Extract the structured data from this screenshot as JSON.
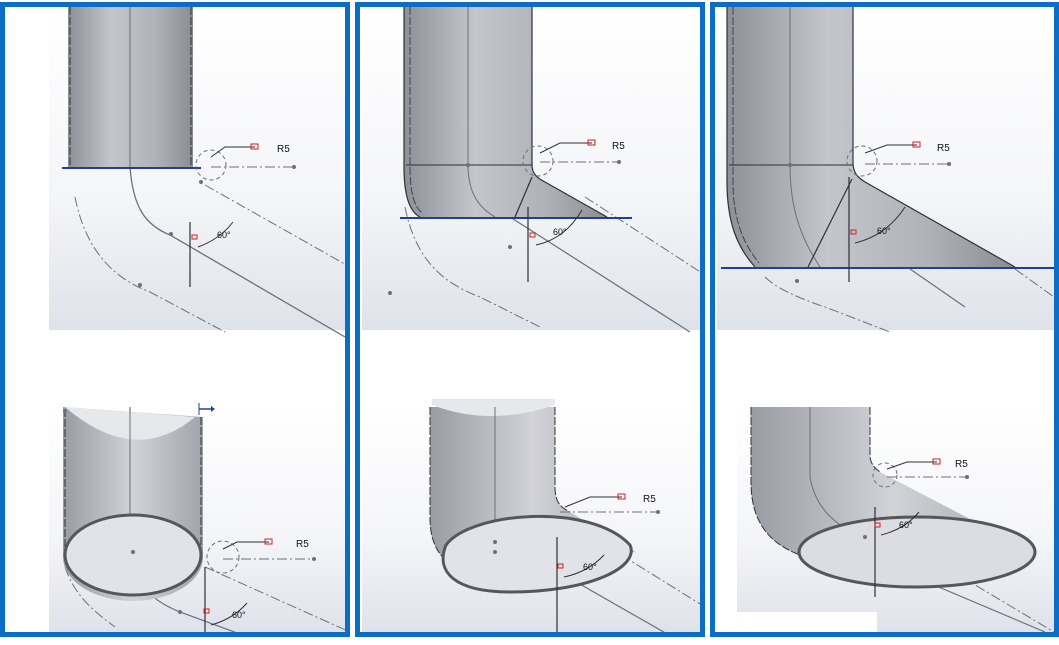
{
  "colors": {
    "frame": "#0b6ec4",
    "section_line": "#1f3fa0",
    "pipe_fill": "#a9abb2",
    "edge": "#2f3136",
    "construction": "#6e7076",
    "relation_marker": "#d42020"
  },
  "icons": [
    "radius-callout-icon",
    "relation-marker-icon",
    "triad-arrow-icon"
  ],
  "panels": [
    {
      "top": {
        "radius_label": "R5",
        "angle_label": "60°"
      },
      "bottom": {
        "radius_label": "R5",
        "angle_label": "60°"
      }
    },
    {
      "top": {
        "radius_label": "R5",
        "angle_label": "60°"
      },
      "bottom": {
        "radius_label": "R5",
        "angle_label": "60°"
      }
    },
    {
      "top": {
        "radius_label": "R5",
        "angle_label": "60°"
      },
      "bottom": {
        "radius_label": "R5",
        "angle_label": "60°"
      }
    }
  ]
}
